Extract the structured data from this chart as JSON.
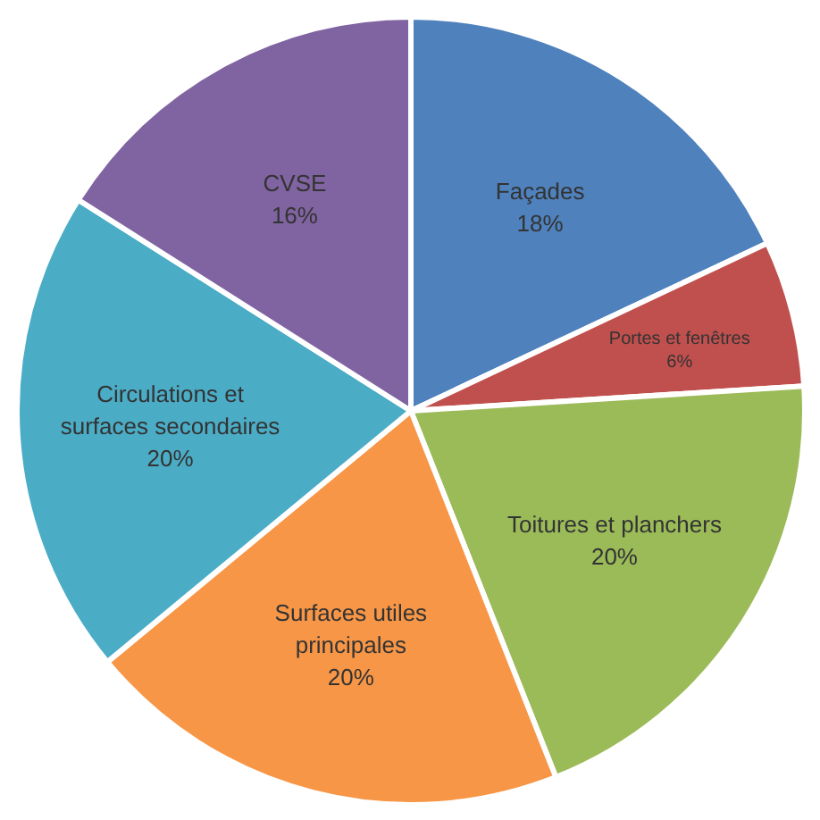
{
  "chart_data": {
    "type": "pie",
    "categories": [
      "Façades",
      "Portes et fenêtres",
      "Toitures et planchers",
      "Surfaces utiles principales",
      "Circulations et surfaces secondaires",
      "CVSE"
    ],
    "values": [
      18,
      6,
      20,
      20,
      20,
      16
    ],
    "value_labels": [
      "18%",
      "6%",
      "20%",
      "20%",
      "20%",
      "16%"
    ],
    "colors": [
      "#4f81bd",
      "#c0504d",
      "#9bbb59",
      "#f79646",
      "#4bacc6",
      "#8064a2"
    ]
  }
}
